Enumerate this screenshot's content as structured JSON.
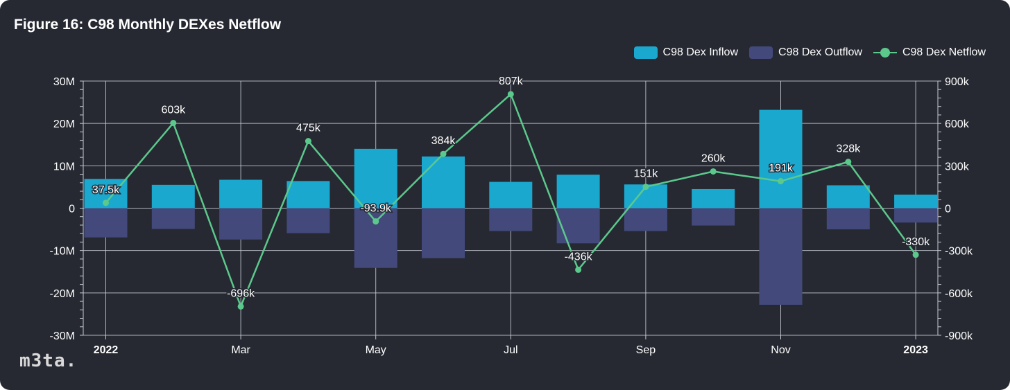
{
  "title": "Figure 16: C98 Monthly DEXes Netflow",
  "watermark": "m3ta.",
  "legend": [
    {
      "label": "C98 Dex Inflow",
      "kind": "bar",
      "color": "#1ba8cf"
    },
    {
      "label": "C98 Dex Outflow",
      "kind": "bar",
      "color": "#434a7b"
    },
    {
      "label": "C98 Dex Netflow",
      "kind": "line",
      "color": "#5cc98c"
    }
  ],
  "chart_data": {
    "type": "bar",
    "title": "Figure 16: C98 Monthly DEXes Netflow",
    "x_tick_labels": [
      "2022",
      "Mar",
      "May",
      "Jul",
      "Sep",
      "Nov",
      "2023"
    ],
    "x_tick_bold": [
      true,
      false,
      false,
      false,
      false,
      false,
      true
    ],
    "y_left_ticks": [
      "30M",
      "20M",
      "10M",
      "0",
      "-10M",
      "-20M",
      "-30M"
    ],
    "y_right_ticks": [
      "900k",
      "600k",
      "300k",
      "0",
      "-300k",
      "-600k",
      "-900k"
    ],
    "y_left_lim": [
      -30000000,
      30000000
    ],
    "y_right_lim": [
      -900000,
      900000
    ],
    "grid": true,
    "legend_position": "top-right",
    "categories": [
      "2022-01",
      "2022-02",
      "2022-03",
      "2022-04",
      "2022-05",
      "2022-06",
      "2022-07",
      "2022-08",
      "2022-09",
      "2022-10",
      "2022-11",
      "2022-12",
      "2023-01"
    ],
    "series": [
      {
        "name": "C98 Dex Inflow",
        "type": "bar",
        "axis": "left",
        "color": "#1ba8cf",
        "values": [
          6900000,
          5500000,
          6700000,
          6400000,
          14000000,
          12200000,
          6200000,
          7900000,
          5600000,
          4500000,
          23200000,
          5400000,
          3200000
        ]
      },
      {
        "name": "C98 Dex Outflow",
        "type": "bar",
        "axis": "left",
        "color": "#434a7b",
        "values": [
          -6900000,
          -4900000,
          -7400000,
          -5900000,
          -14100000,
          -11800000,
          -5400000,
          -8300000,
          -5400000,
          -4100000,
          -22800000,
          -5000000,
          -3400000
        ]
      },
      {
        "name": "C98 Dex Netflow",
        "type": "line",
        "axis": "right",
        "color": "#5cc98c",
        "values": [
          37500,
          603000,
          -696000,
          475000,
          -93900,
          384000,
          807000,
          -436000,
          151000,
          260000,
          191000,
          328000,
          -330000
        ],
        "labels": [
          "37.5k",
          "603k",
          "-696k",
          "475k",
          "-93.9k",
          "384k",
          "807k",
          "-436k",
          "151k",
          "260k",
          "191k",
          "328k",
          "-330k"
        ]
      }
    ]
  }
}
